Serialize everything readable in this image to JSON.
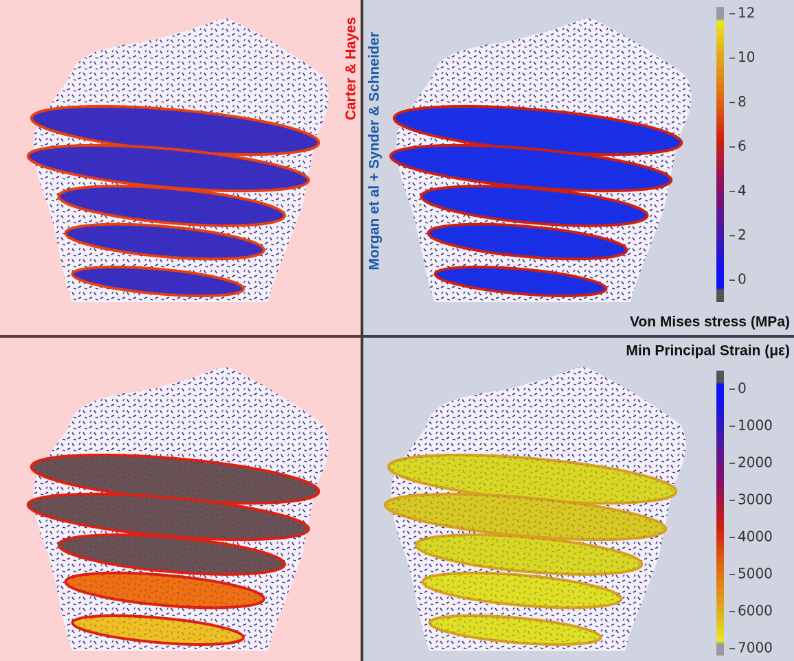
{
  "labels": {
    "model_a": "Carter & Hayes",
    "model_b": "Morgan et al + Synder & Schneider"
  },
  "colorbars": [
    {
      "title": "Von Mises stress (MPa)",
      "ticks": [
        "12",
        "10",
        "8",
        "6",
        "4",
        "2",
        "0"
      ]
    },
    {
      "title": "Min Principal Strain (με)",
      "ticks": [
        "0",
        "1000",
        "2000",
        "3000",
        "4000",
        "5000",
        "6000",
        "7000"
      ]
    }
  ]
}
